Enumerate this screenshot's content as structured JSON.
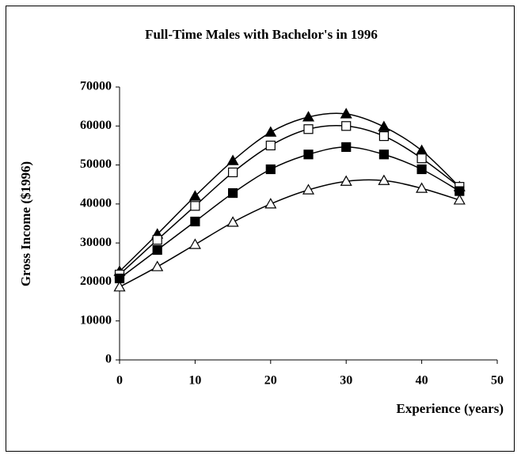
{
  "chart_data": {
    "type": "line",
    "title": "Full-Time Males with Bachelor's in 1996",
    "x_label": "Experience (years)",
    "y_label": "Gross Income ($1996)",
    "x": [
      0,
      5,
      10,
      15,
      20,
      25,
      30,
      35,
      40,
      45
    ],
    "series": [
      {
        "color": "#000000",
        "marker": "triangle",
        "filled": true,
        "values": [
          22700,
          32250,
          42000,
          51100,
          58400,
          62300,
          63100,
          59800,
          53700,
          44400
        ]
      },
      {
        "color": "#000000",
        "marker": "square",
        "filled": false,
        "values": [
          21900,
          30800,
          39500,
          48100,
          55000,
          59200,
          60000,
          57400,
          51700,
          44400
        ]
      },
      {
        "color": "#000000",
        "marker": "square",
        "filled": true,
        "values": [
          20900,
          28200,
          35500,
          42800,
          48900,
          52700,
          54600,
          52700,
          48900,
          43300
        ]
      },
      {
        "color": "#000000",
        "marker": "triangle",
        "filled": false,
        "values": [
          18700,
          23900,
          29600,
          35300,
          40000,
          43600,
          45800,
          46000,
          44000,
          41000
        ]
      }
    ],
    "xlim": [
      0,
      50
    ],
    "xticks": [
      0,
      10,
      20,
      30,
      40,
      50
    ],
    "ylim": [
      0,
      70000
    ],
    "yticks": [
      0,
      10000,
      20000,
      30000,
      40000,
      50000,
      60000,
      70000
    ],
    "smooth": true,
    "grid": false
  }
}
